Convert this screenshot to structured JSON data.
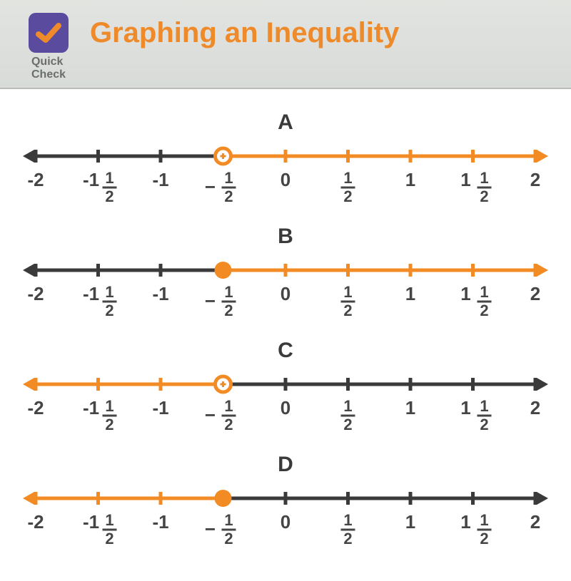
{
  "header": {
    "title": "Graphing an Inequality",
    "badge_label_line1": "Quick",
    "badge_label_line2": "Check",
    "title_color": "#ee8a2a",
    "badge_bg": "#5a4b9e",
    "badge_check_color": "#ef8a2c"
  },
  "axis": {
    "xmin": -2,
    "xmax": 2,
    "tick_step": 0.5,
    "tick_labels": [
      "-2",
      "-1½",
      "-1",
      "-½",
      "0",
      "½",
      "1",
      "1½",
      "2"
    ],
    "line_color_base": "#3a3a3a",
    "highlight_color": "#f28b23",
    "line_width": 5,
    "tick_height": 18,
    "tick_width": 5,
    "label_fontsize": 26,
    "label_color": "#454545"
  },
  "lines": [
    {
      "label": "A",
      "point": -0.5,
      "open": true,
      "direction": "right"
    },
    {
      "label": "B",
      "point": -0.5,
      "open": false,
      "direction": "right"
    },
    {
      "label": "C",
      "point": -0.5,
      "open": true,
      "direction": "left"
    },
    {
      "label": "D",
      "point": -0.5,
      "open": false,
      "direction": "left"
    }
  ]
}
